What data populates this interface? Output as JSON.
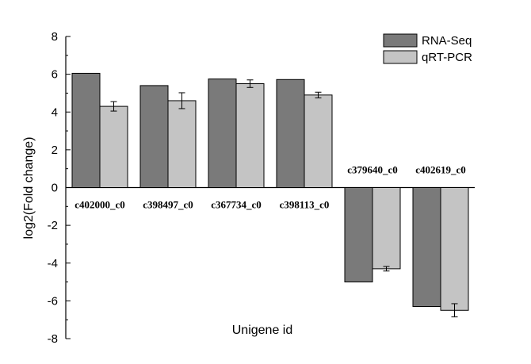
{
  "chart_data": {
    "type": "bar",
    "title": "",
    "xlabel": "Unigene id",
    "ylabel": "log2(Fold change)",
    "ylim": [
      -8,
      8
    ],
    "yticks": [
      -8,
      -6,
      -4,
      -2,
      0,
      2,
      4,
      6,
      8
    ],
    "grid": false,
    "legend_position": "top-right",
    "categories": [
      "c402000_c0",
      "c398497_c0",
      "c367734_c0",
      "c398113_c0",
      "c379640_c0",
      "c402619_c0"
    ],
    "series": [
      {
        "name": "RNA-Seq",
        "color": "#7a7a7a",
        "values": [
          6.05,
          5.4,
          5.75,
          5.72,
          -5.0,
          -6.3
        ]
      },
      {
        "name": "qRT-PCR",
        "color": "#c4c4c4",
        "values": [
          4.3,
          4.6,
          5.5,
          4.9,
          -4.3,
          -6.5
        ],
        "errors": [
          0.25,
          0.42,
          0.2,
          0.15,
          0.12,
          0.35
        ]
      }
    ]
  }
}
